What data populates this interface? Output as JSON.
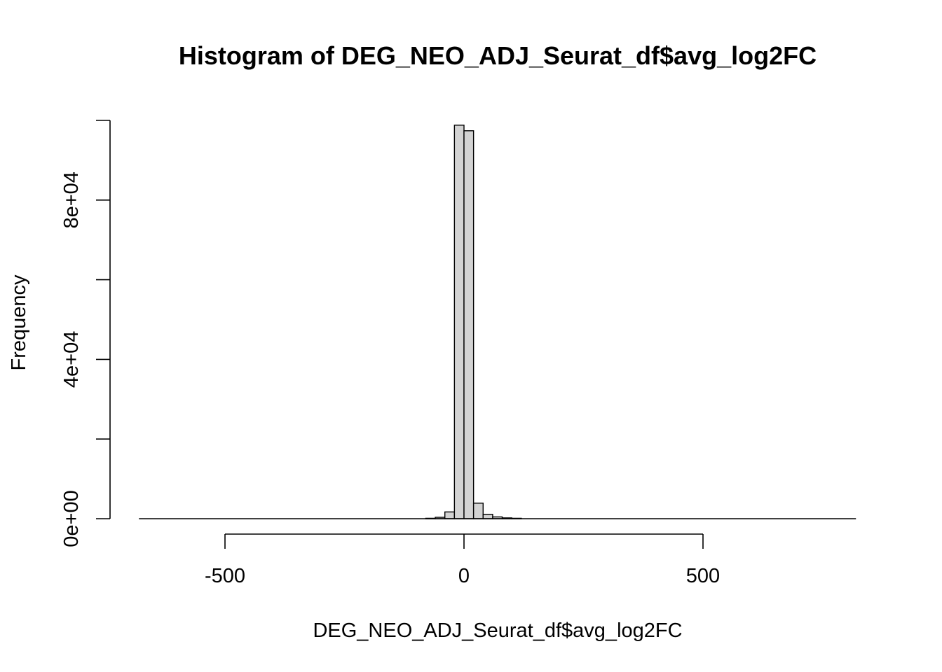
{
  "chart_data": {
    "type": "bar",
    "title": "Histogram of DEG_NEO_ADJ_Seurat_df$avg_log2FC",
    "xlabel": "DEG_NEO_ADJ_Seurat_df$avg_log2FC",
    "ylabel": "Frequency",
    "bar_color": "#d3d3d3",
    "bin_width": 20,
    "xlim": [
      -680,
      820
    ],
    "ylim": [
      0,
      100000
    ],
    "x_axis_range": [
      -500,
      500
    ],
    "x_ticks": [
      {
        "value": -500,
        "label": "-500"
      },
      {
        "value": 0,
        "label": "0"
      },
      {
        "value": 500,
        "label": "500"
      }
    ],
    "y_ticks": [
      {
        "value": 0,
        "label": "0e+00"
      },
      {
        "value": 20000,
        "label": ""
      },
      {
        "value": 40000,
        "label": "4e+04"
      },
      {
        "value": 60000,
        "label": ""
      },
      {
        "value": 80000,
        "label": "8e+04"
      },
      {
        "value": 100000,
        "label": ""
      }
    ],
    "bins": [
      {
        "start": -80,
        "end": -60,
        "count": 100
      },
      {
        "start": -60,
        "end": -40,
        "count": 350
      },
      {
        "start": -40,
        "end": -20,
        "count": 1700
      },
      {
        "start": -20,
        "end": 0,
        "count": 98800
      },
      {
        "start": 0,
        "end": 20,
        "count": 97400
      },
      {
        "start": 20,
        "end": 40,
        "count": 3900
      },
      {
        "start": 40,
        "end": 60,
        "count": 1100
      },
      {
        "start": 60,
        "end": 80,
        "count": 450
      },
      {
        "start": 80,
        "end": 100,
        "count": 200
      },
      {
        "start": 100,
        "end": 120,
        "count": 100
      }
    ]
  }
}
